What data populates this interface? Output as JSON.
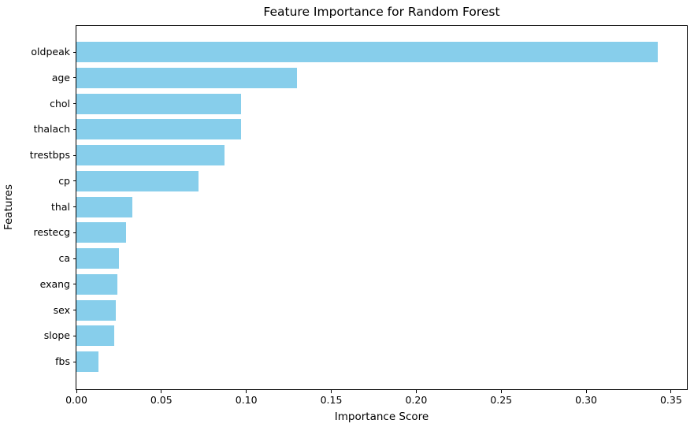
{
  "chart_data": {
    "type": "bar",
    "orientation": "horizontal",
    "title": "Feature Importance for Random Forest",
    "xlabel": "Importance Score",
    "ylabel": "Features",
    "categories": [
      "oldpeak",
      "age",
      "chol",
      "thalach",
      "trestbps",
      "cp",
      "thal",
      "restecg",
      "ca",
      "exang",
      "sex",
      "slope",
      "fbs"
    ],
    "values": [
      0.342,
      0.13,
      0.097,
      0.097,
      0.087,
      0.072,
      0.033,
      0.029,
      0.025,
      0.024,
      0.023,
      0.022,
      0.013
    ],
    "x_tick_labels": [
      "0.00",
      "0.05",
      "0.10",
      "0.15",
      "0.20",
      "0.25",
      "0.30",
      "0.35"
    ],
    "xlim": [
      0,
      0.3593
    ],
    "bar_color": "#87CEEB",
    "grid": false,
    "legend": "none",
    "background_color": "#ffffff",
    "text_color": "#000000"
  }
}
